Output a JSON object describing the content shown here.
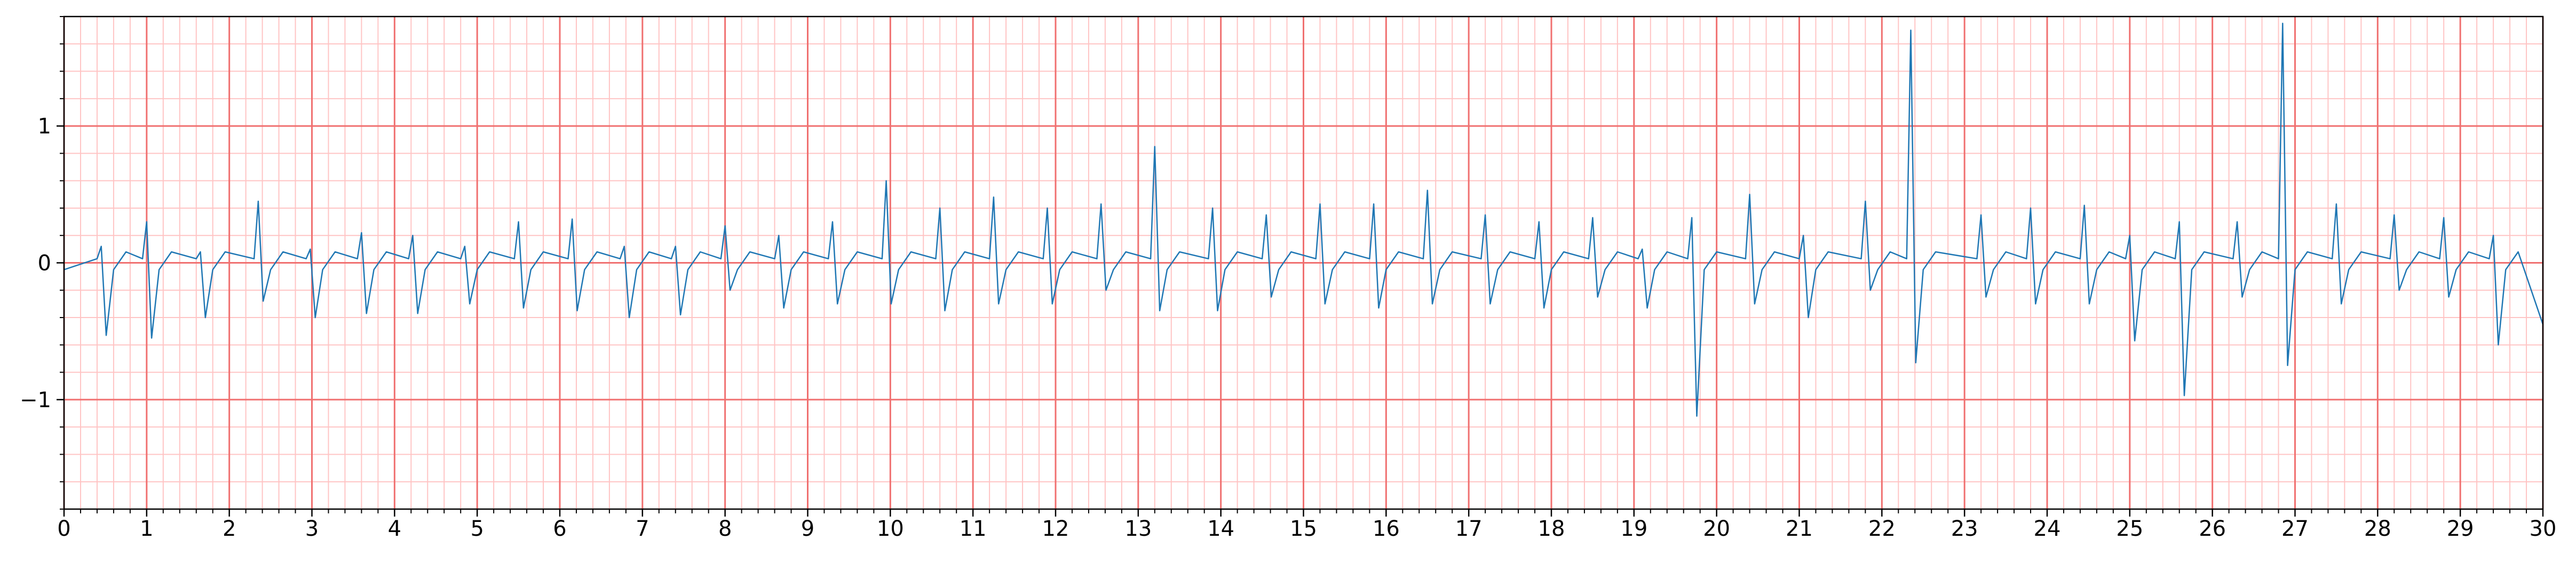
{
  "chart_data": {
    "type": "line",
    "x": [
      0,
      0.4,
      0.45,
      0.51,
      0.6,
      0.75,
      0.95,
      1.0,
      1.06,
      1.15,
      1.3,
      1.6,
      1.65,
      1.71,
      1.8,
      1.95,
      2.3,
      2.35,
      2.41,
      2.5,
      2.65,
      2.93,
      2.98,
      3.04,
      3.13,
      3.28,
      3.55,
      3.6,
      3.66,
      3.75,
      3.9,
      4.17,
      4.22,
      4.28,
      4.37,
      4.52,
      4.8,
      4.85,
      4.91,
      5.0,
      5.15,
      5.45,
      5.5,
      5.56,
      5.65,
      5.8,
      6.1,
      6.15,
      6.21,
      6.3,
      6.45,
      6.73,
      6.78,
      6.84,
      6.93,
      7.08,
      7.35,
      7.4,
      7.46,
      7.55,
      7.7,
      7.95,
      8.0,
      8.06,
      8.15,
      8.3,
      8.6,
      8.65,
      8.71,
      8.8,
      8.95,
      9.25,
      9.3,
      9.36,
      9.45,
      9.6,
      9.9,
      9.95,
      10.01,
      10.1,
      10.25,
      10.55,
      10.6,
      10.66,
      10.75,
      10.9,
      11.2,
      11.25,
      11.31,
      11.4,
      11.55,
      11.85,
      11.9,
      11.96,
      12.05,
      12.2,
      12.5,
      12.55,
      12.61,
      12.7,
      12.85,
      13.15,
      13.2,
      13.26,
      13.35,
      13.5,
      13.85,
      13.9,
      13.96,
      14.05,
      14.2,
      14.5,
      14.55,
      14.61,
      14.7,
      14.85,
      15.15,
      15.2,
      15.26,
      15.35,
      15.5,
      15.8,
      15.85,
      15.91,
      16.0,
      16.15,
      16.45,
      16.5,
      16.56,
      16.65,
      16.8,
      17.15,
      17.2,
      17.26,
      17.35,
      17.5,
      17.8,
      17.85,
      17.91,
      18.0,
      18.15,
      18.45,
      18.5,
      18.56,
      18.65,
      18.8,
      19.05,
      19.1,
      19.16,
      19.25,
      19.4,
      19.65,
      19.7,
      19.76,
      19.85,
      20.0,
      20.35,
      20.4,
      20.46,
      20.55,
      20.7,
      21.0,
      21.05,
      21.11,
      21.2,
      21.35,
      21.75,
      21.8,
      21.86,
      21.95,
      22.1,
      22.3,
      22.35,
      22.41,
      22.5,
      22.65,
      23.15,
      23.2,
      23.26,
      23.35,
      23.5,
      23.75,
      23.8,
      23.86,
      23.95,
      24.1,
      24.4,
      24.45,
      24.51,
      24.6,
      24.75,
      24.95,
      25.0,
      25.06,
      25.15,
      25.3,
      25.55,
      25.6,
      25.66,
      25.75,
      25.9,
      26.25,
      26.3,
      26.36,
      26.45,
      26.6,
      26.8,
      26.85,
      26.91,
      27.0,
      27.15,
      27.45,
      27.5,
      27.56,
      27.65,
      27.8,
      28.15,
      28.2,
      28.26,
      28.35,
      28.5,
      28.75,
      28.8,
      28.86,
      28.95,
      29.1,
      29.35,
      29.4,
      29.46,
      29.55,
      29.7,
      30
    ],
    "values": [
      -0.05,
      0.03,
      0.12,
      -0.53,
      -0.05,
      0.08,
      0.03,
      0.3,
      -0.55,
      -0.05,
      0.08,
      0.03,
      0.08,
      -0.4,
      -0.05,
      0.08,
      0.03,
      0.45,
      -0.28,
      -0.05,
      0.08,
      0.03,
      0.1,
      -0.4,
      -0.05,
      0.08,
      0.03,
      0.22,
      -0.37,
      -0.05,
      0.08,
      0.03,
      0.2,
      -0.37,
      -0.05,
      0.08,
      0.03,
      0.12,
      -0.3,
      -0.05,
      0.08,
      0.03,
      0.3,
      -0.33,
      -0.05,
      0.08,
      0.03,
      0.32,
      -0.35,
      -0.05,
      0.08,
      0.03,
      0.12,
      -0.4,
      -0.05,
      0.08,
      0.03,
      0.12,
      -0.38,
      -0.05,
      0.08,
      0.03,
      0.27,
      -0.2,
      -0.05,
      0.08,
      0.03,
      0.2,
      -0.33,
      -0.05,
      0.08,
      0.03,
      0.3,
      -0.3,
      -0.05,
      0.08,
      0.03,
      0.6,
      -0.3,
      -0.05,
      0.08,
      0.03,
      0.4,
      -0.35,
      -0.05,
      0.08,
      0.03,
      0.48,
      -0.3,
      -0.05,
      0.08,
      0.03,
      0.4,
      -0.3,
      -0.05,
      0.08,
      0.03,
      0.43,
      -0.2,
      -0.05,
      0.08,
      0.03,
      0.85,
      -0.35,
      -0.05,
      0.08,
      0.03,
      0.4,
      -0.35,
      -0.05,
      0.08,
      0.03,
      0.35,
      -0.25,
      -0.05,
      0.08,
      0.03,
      0.43,
      -0.3,
      -0.05,
      0.08,
      0.03,
      0.43,
      -0.33,
      -0.05,
      0.08,
      0.03,
      0.53,
      -0.3,
      -0.05,
      0.08,
      0.03,
      0.35,
      -0.3,
      -0.05,
      0.08,
      0.03,
      0.3,
      -0.33,
      -0.05,
      0.08,
      0.03,
      0.33,
      -0.25,
      -0.05,
      0.08,
      0.03,
      0.1,
      -0.33,
      -0.05,
      0.08,
      0.03,
      0.33,
      -1.12,
      -0.05,
      0.08,
      0.03,
      0.5,
      -0.3,
      -0.05,
      0.08,
      0.03,
      0.2,
      -0.4,
      -0.05,
      0.08,
      0.03,
      0.45,
      -0.2,
      -0.05,
      0.08,
      0.03,
      1.7,
      -0.73,
      -0.05,
      0.08,
      0.03,
      0.35,
      -0.25,
      -0.05,
      0.08,
      0.03,
      0.4,
      -0.3,
      -0.05,
      0.08,
      0.03,
      0.42,
      -0.3,
      -0.05,
      0.08,
      0.03,
      0.2,
      -0.57,
      -0.05,
      0.08,
      0.03,
      0.3,
      -0.97,
      -0.05,
      0.08,
      0.03,
      0.3,
      -0.25,
      -0.05,
      0.08,
      0.03,
      1.75,
      -0.75,
      -0.05,
      0.08,
      0.03,
      0.43,
      -0.3,
      -0.05,
      0.08,
      0.03,
      0.35,
      -0.2,
      -0.05,
      0.08,
      0.03,
      0.33,
      -0.25,
      -0.05,
      0.08,
      0.03,
      0.2,
      -0.6,
      -0.05,
      0.08,
      -0.45
    ],
    "color": "#1f77b4",
    "xlim": [
      0,
      30
    ],
    "xticks": [
      0,
      1,
      2,
      3,
      4,
      5,
      6,
      7,
      8,
      9,
      10,
      11,
      12,
      13,
      14,
      15,
      16,
      17,
      18,
      19,
      20,
      21,
      22,
      23,
      24,
      25,
      26,
      27,
      28,
      29,
      30
    ],
    "ylim": [
      -1.8,
      1.8
    ],
    "yticks": [
      {
        "value": -1,
        "label": "−1"
      },
      0,
      1
    ],
    "grid": true,
    "major_grid_color": "#f07070",
    "minor_grid_color": "#ffc4c4",
    "minor_step": 0.2
  }
}
